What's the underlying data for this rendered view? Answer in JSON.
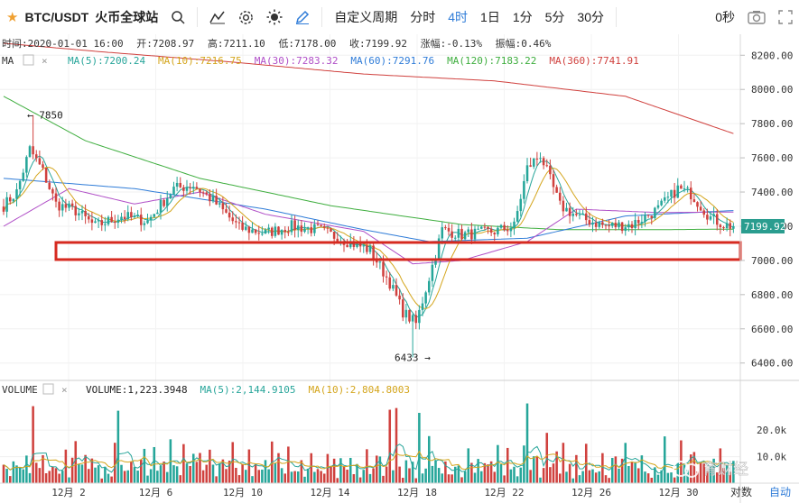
{
  "toolbar": {
    "symbol": "BTC/USDT",
    "exchange": "火币全球站",
    "custom_period": "自定义周期",
    "periods": [
      "分时",
      "4时",
      "1日",
      "1分",
      "5分",
      "30分"
    ],
    "active_period": "4时",
    "countdown": "0秒",
    "icons": [
      "star-icon",
      "search-icon",
      "indicator-icon",
      "settings-icon",
      "theme-sun-icon",
      "pencil-icon",
      "camera-icon",
      "fullscreen-icon"
    ]
  },
  "info_line": {
    "time": "时间:2020-01-01 16:00",
    "open": "开:7208.97",
    "high": "高:7211.10",
    "low": "低:7178.00",
    "close": "收:7199.92",
    "change": "涨幅:-0.13%",
    "amplitude": "振幅:0.46%"
  },
  "ma_legend": {
    "label": "MA",
    "items": [
      {
        "text": "MA(5):7200.24",
        "color": "#27a59a"
      },
      {
        "text": "MA(10):7216.75",
        "color": "#d4a51c"
      },
      {
        "text": "MA(30):7283.32",
        "color": "#b04fc7"
      },
      {
        "text": "MA(60):7291.76",
        "color": "#2f7cd8"
      },
      {
        "text": "MA(120):7183.22",
        "color": "#3fae3f"
      },
      {
        "text": "MA(360):7741.91",
        "color": "#d0413e"
      }
    ]
  },
  "volume_legend": {
    "label": "VOLUME",
    "items": [
      {
        "text": "VOLUME:1,223.3948",
        "color": "#222222"
      },
      {
        "text": "MA(5):2,144.9105",
        "color": "#27a59a"
      },
      {
        "text": "MA(10):2,804.8003",
        "color": "#d4a51c"
      }
    ]
  },
  "chart_data": {
    "type": "candlestick",
    "symbol": "BTC/USDT",
    "interval": "4h",
    "price_axis_ticks": [
      8200,
      8000,
      7800,
      7600,
      7400,
      7200,
      7000,
      6800,
      6600,
      6400
    ],
    "price_range": [
      6330,
      8270
    ],
    "current_price_label": "7199.92",
    "volume_axis_ticks": [
      "20.0k",
      "10.0k"
    ],
    "volume_range": [
      0,
      34000
    ],
    "x_tick_labels": [
      "12月 2",
      "12月 6",
      "12月 10",
      "12月 14",
      "12月 18",
      "12月 22",
      "12月 26",
      "12月 30"
    ],
    "annotations": [
      {
        "text": "← 7850",
        "price": 7850,
        "type": "high"
      },
      {
        "text": "6433 →",
        "price": 6433,
        "type": "low"
      }
    ],
    "highlight_zone": {
      "from": 7005,
      "to": 7105,
      "color": "#d62a20"
    },
    "close_anchors": [
      [
        0,
        7320
      ],
      [
        4,
        7400
      ],
      [
        8,
        7650
      ],
      [
        12,
        7520
      ],
      [
        16,
        7330
      ],
      [
        22,
        7290
      ],
      [
        28,
        7200
      ],
      [
        36,
        7260
      ],
      [
        44,
        7230
      ],
      [
        52,
        7420
      ],
      [
        58,
        7440
      ],
      [
        64,
        7350
      ],
      [
        72,
        7190
      ],
      [
        80,
        7160
      ],
      [
        88,
        7200
      ],
      [
        96,
        7180
      ],
      [
        104,
        7120
      ],
      [
        112,
        7060
      ],
      [
        118,
        6870
      ],
      [
        122,
        6700
      ],
      [
        126,
        6630
      ],
      [
        130,
        6900
      ],
      [
        134,
        7180
      ],
      [
        140,
        7150
      ],
      [
        150,
        7170
      ],
      [
        156,
        7200
      ],
      [
        160,
        7540
      ],
      [
        164,
        7620
      ],
      [
        170,
        7320
      ],
      [
        176,
        7250
      ],
      [
        184,
        7200
      ],
      [
        192,
        7210
      ],
      [
        200,
        7300
      ],
      [
        206,
        7420
      ],
      [
        210,
        7390
      ],
      [
        216,
        7250
      ],
      [
        220,
        7210
      ],
      [
        223,
        7200
      ]
    ],
    "ma_lines": [
      {
        "name": "MA(360)",
        "color": "#d0413e",
        "points": [
          [
            0,
            8270
          ],
          [
            30,
            8220
          ],
          [
            70,
            8160
          ],
          [
            110,
            8090
          ],
          [
            150,
            8050
          ],
          [
            190,
            7960
          ],
          [
            223,
            7741.91
          ]
        ]
      },
      {
        "name": "MA(120)",
        "color": "#3fae3f",
        "points": [
          [
            0,
            7960
          ],
          [
            25,
            7700
          ],
          [
            60,
            7480
          ],
          [
            100,
            7320
          ],
          [
            140,
            7210
          ],
          [
            170,
            7180
          ],
          [
            200,
            7180
          ],
          [
            223,
            7183.22
          ]
        ]
      },
      {
        "name": "MA(60)",
        "color": "#2f7cd8",
        "points": [
          [
            0,
            7480
          ],
          [
            40,
            7420
          ],
          [
            80,
            7300
          ],
          [
            110,
            7180
          ],
          [
            130,
            7110
          ],
          [
            160,
            7130
          ],
          [
            190,
            7260
          ],
          [
            223,
            7291.76
          ]
        ]
      },
      {
        "name": "MA(30)",
        "color": "#b04fc7",
        "points": [
          [
            0,
            7200
          ],
          [
            20,
            7420
          ],
          [
            40,
            7330
          ],
          [
            60,
            7400
          ],
          [
            80,
            7270
          ],
          [
            110,
            7170
          ],
          [
            125,
            6980
          ],
          [
            140,
            7000
          ],
          [
            160,
            7110
          ],
          [
            175,
            7300
          ],
          [
            200,
            7280
          ],
          [
            223,
            7283.32
          ]
        ]
      }
    ],
    "volume_pattern": [
      6000,
      9000,
      4000,
      12000,
      5000,
      7000,
      3500,
      10000,
      6000,
      4500,
      15000,
      5500,
      8000,
      4000,
      6500,
      11000,
      5000,
      3800,
      7500,
      9500,
      4200,
      6800,
      13000,
      5200
    ]
  },
  "watermark": "育财经",
  "axis_buttons": {
    "log": "对数",
    "auto": "自动"
  }
}
